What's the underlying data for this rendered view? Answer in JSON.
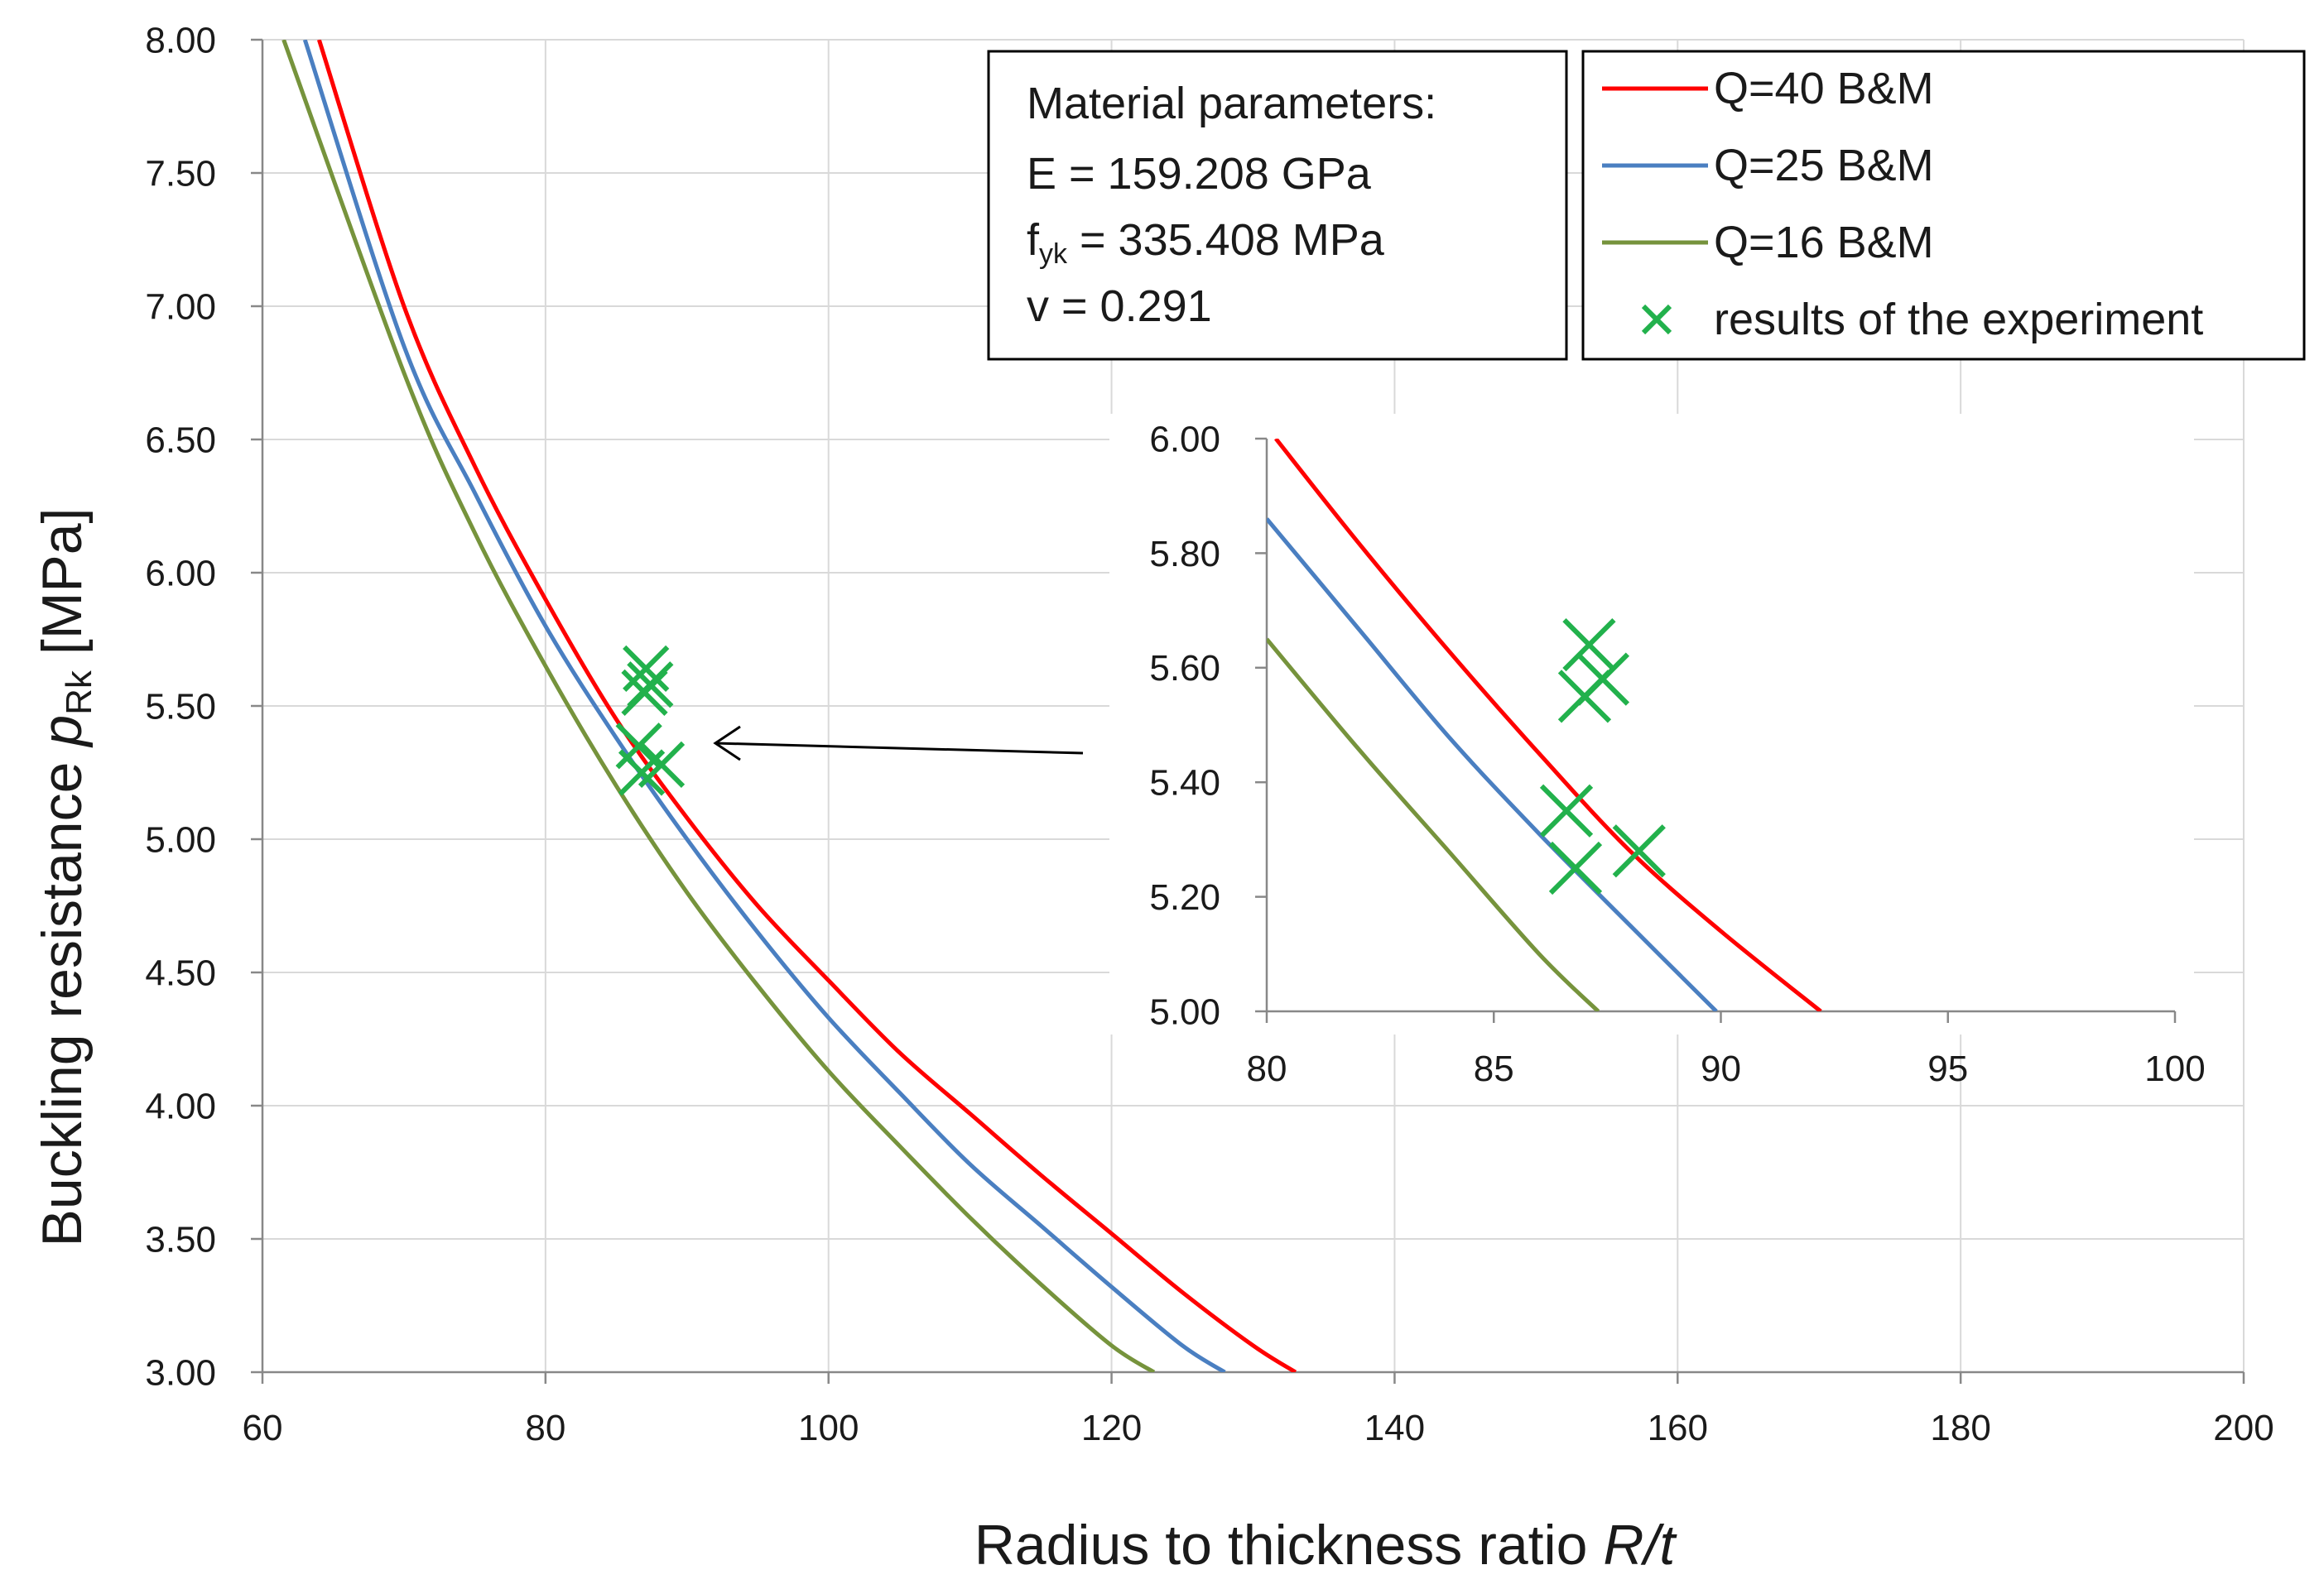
{
  "chart_data": [
    {
      "type": "line",
      "role": "main",
      "xlabel": "Radius to thickness ratio",
      "xlabel_italic": "R/t",
      "ylabel": "Buckling resistance",
      "ylabel_symbol": "p",
      "ylabel_subscript": "Rk",
      "ylabel_unit": "[MPa]",
      "xlim": [
        60,
        200
      ],
      "ylim": [
        3.0,
        8.0
      ],
      "x_ticks": [
        "60",
        "80",
        "100",
        "120",
        "140",
        "160",
        "180",
        "200"
      ],
      "y_ticks": [
        "3.00",
        "3.50",
        "4.00",
        "4.50",
        "5.00",
        "5.50",
        "6.00",
        "6.50",
        "7.00",
        "7.50",
        "8.00"
      ],
      "grid": true,
      "legend_position": "top-right",
      "series": [
        {
          "name": "Q=40  B&M",
          "color": "#ff0000",
          "x": [
            64.0,
            70,
            75,
            80,
            85,
            90,
            95,
            100,
            105,
            110,
            115,
            120,
            125,
            130,
            133.0
          ],
          "y": [
            8.0,
            7.0,
            6.4,
            5.9,
            5.45,
            5.08,
            4.75,
            4.47,
            4.2,
            3.97,
            3.74,
            3.52,
            3.3,
            3.1,
            3.0
          ]
        },
        {
          "name": "Q=25  B&M",
          "color": "#4a7fc1",
          "x": [
            63.0,
            70,
            75,
            80,
            85,
            90,
            95,
            100,
            105,
            110,
            115,
            120,
            125,
            128.0
          ],
          "y": [
            8.0,
            6.85,
            6.3,
            5.8,
            5.38,
            5.0,
            4.65,
            4.33,
            4.05,
            3.78,
            3.55,
            3.32,
            3.1,
            3.0
          ]
        },
        {
          "name": "Q=16  B&M",
          "color": "#76933c",
          "x": [
            61.5,
            70,
            75,
            80,
            85,
            90,
            95,
            100,
            105,
            110,
            115,
            120,
            123.0
          ],
          "y": [
            8.0,
            6.75,
            6.15,
            5.65,
            5.2,
            4.8,
            4.45,
            4.13,
            3.85,
            3.58,
            3.33,
            3.1,
            3.0
          ]
        },
        {
          "name": "results of the experiment",
          "color": "#22b14c",
          "marker": "x",
          "x": [
            87.1,
            87.4,
            87.0,
            86.6,
            86.8,
            88.2
          ],
          "y": [
            5.64,
            5.58,
            5.55,
            5.35,
            5.25,
            5.28
          ]
        }
      ]
    },
    {
      "type": "line",
      "role": "inset",
      "xlim": [
        80,
        100
      ],
      "ylim": [
        5.0,
        6.0
      ],
      "x_ticks": [
        "80",
        "85",
        "90",
        "95",
        "100"
      ],
      "y_ticks": [
        "5.00",
        "5.20",
        "5.40",
        "5.60",
        "5.80",
        "6.00"
      ],
      "grid": false,
      "series": [
        {
          "name": "Q=40  B&M",
          "color": "#ff0000",
          "x": [
            80.2,
            82,
            84,
            86,
            88,
            90,
            92.2
          ],
          "y": [
            6.0,
            5.82,
            5.63,
            5.45,
            5.28,
            5.14,
            5.0
          ]
        },
        {
          "name": "Q=25  B&M",
          "color": "#4a7fc1",
          "x": [
            80.0,
            82,
            84,
            86,
            88,
            89.9
          ],
          "y": [
            5.86,
            5.67,
            5.48,
            5.31,
            5.15,
            5.0
          ]
        },
        {
          "name": "Q=16  B&M",
          "color": "#76933c",
          "x": [
            80.0,
            82,
            84,
            86,
            87.3
          ],
          "y": [
            5.65,
            5.46,
            5.28,
            5.1,
            5.0
          ]
        },
        {
          "name": "results of the experiment",
          "color": "#22b14c",
          "marker": "x",
          "x": [
            87.1,
            87.4,
            87.0,
            86.6,
            86.8,
            88.2
          ],
          "y": [
            5.64,
            5.58,
            5.55,
            5.35,
            5.25,
            5.28
          ]
        }
      ]
    }
  ],
  "material_box": {
    "line1": "Material parameters:",
    "line2": "E = 159.208 GPa",
    "line3_prefix": "f",
    "line3_sub": "yk",
    "line3_rest": " = 335.408  MPa",
    "line4": "v = 0.291"
  }
}
